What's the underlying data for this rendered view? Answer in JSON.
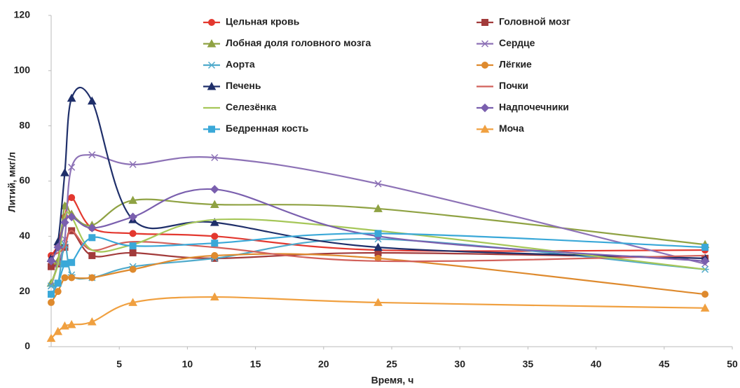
{
  "chart_data": {
    "type": "line",
    "x_label": "Время, ч",
    "y_label": "Литий, мкг/л",
    "x": [
      0,
      0.5,
      1,
      1.5,
      3,
      6,
      12,
      24,
      48
    ],
    "xlim": [
      0,
      50
    ],
    "xticks": [
      5,
      10,
      15,
      20,
      25,
      30,
      35,
      40,
      45,
      50
    ],
    "ylim": [
      0,
      120
    ],
    "yticks": [
      0,
      20,
      40,
      60,
      80,
      100,
      120
    ],
    "grid": false,
    "legend_position": "top",
    "series": [
      {
        "name": "Цельная кровь",
        "color": "#e3382f",
        "marker": "circle",
        "values": [
          33,
          37,
          47,
          54,
          43,
          41,
          40,
          35,
          35
        ]
      },
      {
        "name": "Головной мозг",
        "color": "#a23b3b",
        "marker": "square",
        "values": [
          29,
          30,
          36,
          42,
          33,
          34,
          32,
          34,
          32
        ]
      },
      {
        "name": "Лобная доля головного мозга",
        "color": "#8fa243",
        "marker": "triangle",
        "values": [
          23,
          31,
          51,
          48,
          44,
          53,
          51.5,
          50,
          37
        ]
      },
      {
        "name": "Сердце",
        "color": "#8d72b6",
        "marker": "x",
        "values": [
          22,
          30,
          39,
          65,
          69.5,
          66,
          68.5,
          59,
          30
        ]
      },
      {
        "name": "Аорта",
        "color": "#4faacb",
        "marker": "star",
        "values": [
          22,
          23,
          37,
          26,
          25,
          29,
          32,
          39,
          28
        ]
      },
      {
        "name": "Лёгкие",
        "color": "#de8a2e",
        "marker": "circle",
        "values": [
          16,
          20,
          25,
          25,
          25,
          28,
          33,
          32,
          19
        ]
      },
      {
        "name": "Печень",
        "color": "#1f2f6a",
        "marker": "triangle",
        "values": [
          32,
          38,
          63,
          90,
          89,
          46,
          45,
          36,
          32
        ]
      },
      {
        "name": "Почки",
        "color": "#d2615b",
        "marker": "none",
        "values": [
          33,
          34,
          36,
          42,
          35,
          38,
          36,
          31,
          33
        ]
      },
      {
        "name": "Селезёнка",
        "color": "#a6c759",
        "marker": "none",
        "values": [
          23,
          30,
          47,
          47,
          35,
          37,
          46,
          42,
          28
        ]
      },
      {
        "name": "Надпочечники",
        "color": "#7a5fae",
        "marker": "diamond",
        "values": [
          31,
          36,
          45,
          47,
          43,
          47,
          57,
          40,
          31
        ]
      },
      {
        "name": "Бедренная кость",
        "color": "#3aa8d8",
        "marker": "square",
        "values": [
          19,
          23,
          30,
          30.5,
          39.5,
          36.5,
          37.5,
          41,
          36
        ]
      },
      {
        "name": "Моча",
        "color": "#f0a040",
        "marker": "triangle",
        "values": [
          3,
          5.5,
          7.5,
          8,
          9,
          16,
          18,
          16,
          14
        ]
      }
    ]
  }
}
